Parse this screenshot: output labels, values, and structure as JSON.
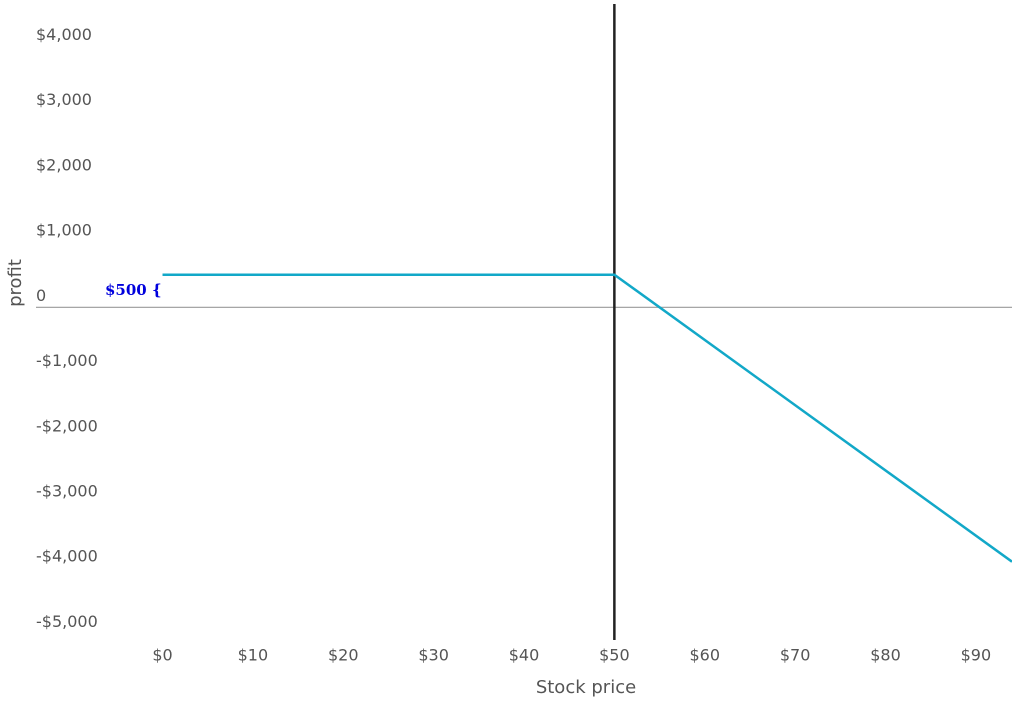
{
  "chart_data": {
    "type": "line",
    "xlabel": "Stock price",
    "ylabel": "profit",
    "x": [
      0,
      50,
      94
    ],
    "values": [
      500,
      500,
      -3900
    ],
    "color": "#12a8c8",
    "xlim": [
      -14,
      94
    ],
    "ylim": [
      -5100,
      4650
    ],
    "xticks": [
      {
        "value": 0,
        "label": "$0"
      },
      {
        "value": 10,
        "label": "$10"
      },
      {
        "value": 20,
        "label": "$20"
      },
      {
        "value": 30,
        "label": "$30"
      },
      {
        "value": 40,
        "label": "$40"
      },
      {
        "value": 50,
        "label": "$50"
      },
      {
        "value": 60,
        "label": "$60"
      },
      {
        "value": 70,
        "label": "$70"
      },
      {
        "value": 80,
        "label": "$80"
      },
      {
        "value": 90,
        "label": "$90"
      }
    ],
    "yticks": [
      {
        "value": 4000,
        "label": "$4,000"
      },
      {
        "value": 3000,
        "label": "$3,000"
      },
      {
        "value": 2000,
        "label": "$2,000"
      },
      {
        "value": 1000,
        "label": "$1,000"
      },
      0,
      {
        "value": -1000,
        "label": "-$1,000"
      },
      {
        "value": -2000,
        "label": "-$2,000"
      },
      {
        "value": -3000,
        "label": "-$3,000"
      },
      {
        "value": -4000,
        "label": "-$4,000"
      },
      {
        "value": -5000,
        "label": "-$5,000"
      }
    ],
    "hline": 0,
    "hline_color": "#999999",
    "vline": 50,
    "vline_color": "#222222",
    "annotation": "$500 {",
    "annotation_color": "#0000dd"
  }
}
